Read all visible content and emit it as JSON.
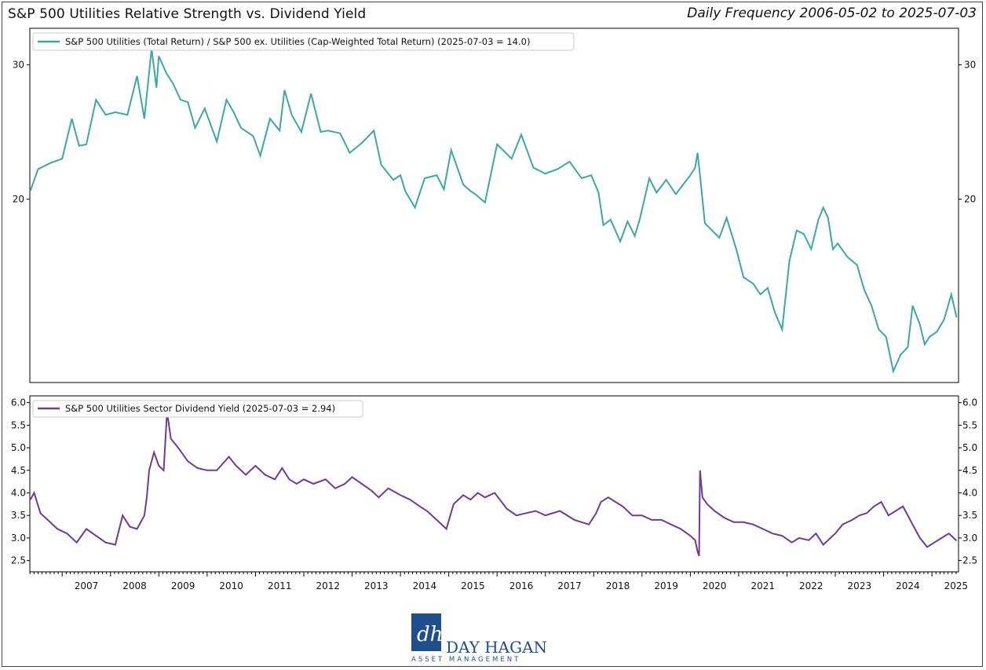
{
  "header": {
    "title": "S&P 500 Utilities Relative Strength vs. Dividend Yield",
    "subtitle": "Daily Frequency 2006-05-02 to 2025-07-03"
  },
  "colors": {
    "rs_line": "#3aa9a6",
    "yield_line": "#6f3a98",
    "logo": "#1f4e8c"
  },
  "logo": {
    "company": "DAY HAGAN",
    "tagline": "ASSET MANAGEMENT",
    "monogram": "dh"
  },
  "chart_data": [
    {
      "type": "line",
      "title": "",
      "yscale": "log",
      "ylim": [
        11.5,
        33.5
      ],
      "xlim": [
        2006.33,
        2025.55
      ],
      "yticks": [
        20,
        30
      ],
      "yticks_labels": [
        "20",
        "30"
      ],
      "legend": "top-left",
      "series": [
        {
          "name": "S&P 500 Utilities (Total Return) / S&P 500 ex. Utilities (Cap-Weighted Total Return) (2025-07-03 = 14.0)",
          "x": [
            2006.34,
            2006.5,
            2006.75,
            2007.0,
            2007.2,
            2007.35,
            2007.5,
            2007.7,
            2007.9,
            2008.1,
            2008.35,
            2008.55,
            2008.7,
            2008.85,
            2008.95,
            2009.0,
            2009.15,
            2009.3,
            2009.45,
            2009.6,
            2009.75,
            2009.95,
            2010.2,
            2010.4,
            2010.55,
            2010.7,
            2010.95,
            2011.1,
            2011.3,
            2011.5,
            2011.6,
            2011.75,
            2011.95,
            2012.15,
            2012.35,
            2012.5,
            2012.75,
            2012.95,
            2013.2,
            2013.45,
            2013.6,
            2013.85,
            2014.0,
            2014.1,
            2014.3,
            2014.5,
            2014.75,
            2014.9,
            2015.05,
            2015.3,
            2015.45,
            2015.55,
            2015.75,
            2016.0,
            2016.3,
            2016.5,
            2016.75,
            2017.0,
            2017.25,
            2017.5,
            2017.75,
            2017.95,
            2018.1,
            2018.2,
            2018.35,
            2018.55,
            2018.7,
            2018.85,
            2018.95,
            2019.15,
            2019.3,
            2019.5,
            2019.7,
            2019.85,
            2020.0,
            2020.1,
            2020.15,
            2020.2,
            2020.3,
            2020.45,
            2020.6,
            2020.75,
            2020.95,
            2021.1,
            2021.3,
            2021.45,
            2021.6,
            2021.75,
            2021.9,
            2022.05,
            2022.2,
            2022.35,
            2022.5,
            2022.65,
            2022.75,
            2022.85,
            2022.95,
            2023.05,
            2023.25,
            2023.45,
            2023.6,
            2023.75,
            2023.9,
            2024.05,
            2024.2,
            2024.35,
            2024.5,
            2024.6,
            2024.75,
            2024.85,
            2024.95,
            2025.1,
            2025.25,
            2025.4,
            2025.51
          ],
          "y": [
            20.5,
            21.9,
            22.3,
            22.6,
            25.5,
            23.5,
            23.6,
            27.0,
            25.8,
            26.0,
            25.8,
            29.0,
            25.5,
            31.5,
            28.0,
            30.8,
            29.3,
            28.3,
            27.0,
            26.8,
            24.8,
            26.3,
            23.8,
            27.0,
            26.0,
            24.8,
            24.2,
            22.8,
            25.5,
            24.6,
            27.8,
            25.8,
            24.5,
            27.5,
            24.5,
            24.6,
            24.4,
            23.0,
            23.7,
            24.6,
            22.2,
            21.2,
            21.5,
            20.5,
            19.5,
            21.3,
            21.5,
            20.6,
            23.2,
            20.9,
            20.5,
            20.3,
            19.8,
            23.6,
            22.6,
            24.3,
            22.0,
            21.6,
            21.9,
            22.4,
            21.3,
            21.5,
            20.4,
            18.5,
            18.8,
            17.6,
            18.7,
            17.9,
            18.8,
            21.3,
            20.4,
            21.2,
            20.3,
            20.9,
            21.5,
            22.0,
            23.0,
            21.5,
            18.6,
            18.2,
            17.8,
            18.9,
            17.2,
            15.8,
            15.5,
            15.0,
            15.3,
            14.2,
            13.5,
            16.6,
            18.2,
            18.0,
            17.2,
            18.8,
            19.5,
            18.9,
            17.2,
            17.5,
            16.8,
            16.4,
            15.2,
            14.5,
            13.5,
            13.2,
            11.9,
            12.5,
            12.8,
            14.5,
            13.7,
            12.9,
            13.2,
            13.4,
            13.9,
            15.0,
            14.0
          ]
        }
      ]
    },
    {
      "type": "line",
      "title": "",
      "ylim": [
        2.25,
        6.15
      ],
      "xlim": [
        2006.33,
        2025.55
      ],
      "yticks": [
        2.5,
        3.0,
        3.5,
        4.0,
        4.5,
        5.0,
        5.5,
        6.0
      ],
      "yticks_labels": [
        "2.5",
        "3.0",
        "3.5",
        "4.0",
        "4.5",
        "5.0",
        "5.5",
        "6.0"
      ],
      "xticks": [
        2007,
        2008,
        2009,
        2010,
        2011,
        2012,
        2013,
        2014,
        2015,
        2016,
        2017,
        2018,
        2019,
        2020,
        2021,
        2022,
        2023,
        2024,
        2025
      ],
      "xticks_labels": [
        "2007",
        "2008",
        "2009",
        "2010",
        "2011",
        "2012",
        "2013",
        "2014",
        "2015",
        "2016",
        "2017",
        "2018",
        "2019",
        "2020",
        "2021",
        "2022",
        "2023",
        "2024",
        "2025"
      ],
      "legend": "top-left",
      "series": [
        {
          "name": "S&P 500 Utilities Sector Dividend Yield (2025-07-03 = 2.94)",
          "x": [
            2006.34,
            2006.42,
            2006.55,
            2006.7,
            2006.9,
            2007.1,
            2007.3,
            2007.5,
            2007.7,
            2007.9,
            2008.1,
            2008.25,
            2008.4,
            2008.55,
            2008.7,
            2008.75,
            2008.8,
            2008.9,
            2009.0,
            2009.1,
            2009.17,
            2009.25,
            2009.4,
            2009.6,
            2009.8,
            2010.0,
            2010.2,
            2010.45,
            2010.6,
            2010.8,
            2011.0,
            2011.2,
            2011.4,
            2011.55,
            2011.7,
            2011.85,
            2012.0,
            2012.2,
            2012.45,
            2012.65,
            2012.85,
            2013.0,
            2013.2,
            2013.4,
            2013.55,
            2013.75,
            2014.0,
            2014.2,
            2014.4,
            2014.55,
            2014.75,
            2014.95,
            2015.1,
            2015.3,
            2015.45,
            2015.6,
            2015.75,
            2015.95,
            2016.2,
            2016.4,
            2016.6,
            2016.8,
            2017.0,
            2017.3,
            2017.6,
            2017.9,
            2018.05,
            2018.15,
            2018.3,
            2018.45,
            2018.6,
            2018.8,
            2019.0,
            2019.2,
            2019.4,
            2019.6,
            2019.8,
            2020.0,
            2020.1,
            2020.15,
            2020.18,
            2020.2,
            2020.25,
            2020.35,
            2020.5,
            2020.7,
            2020.9,
            2021.1,
            2021.3,
            2021.5,
            2021.7,
            2021.9,
            2022.1,
            2022.25,
            2022.45,
            2022.6,
            2022.75,
            2022.9,
            2023.0,
            2023.15,
            2023.35,
            2023.5,
            2023.65,
            2023.8,
            2023.95,
            2024.1,
            2024.25,
            2024.4,
            2024.6,
            2024.75,
            2024.9,
            2025.05,
            2025.2,
            2025.35,
            2025.51
          ],
          "y": [
            3.85,
            4.0,
            3.55,
            3.4,
            3.2,
            3.1,
            2.9,
            3.2,
            3.05,
            2.9,
            2.85,
            3.5,
            3.25,
            3.2,
            3.5,
            3.9,
            4.5,
            4.9,
            4.6,
            4.5,
            5.8,
            5.2,
            5.0,
            4.7,
            4.55,
            4.5,
            4.5,
            4.8,
            4.6,
            4.4,
            4.6,
            4.4,
            4.3,
            4.55,
            4.3,
            4.2,
            4.3,
            4.2,
            4.3,
            4.1,
            4.2,
            4.35,
            4.2,
            4.05,
            3.9,
            4.1,
            3.95,
            3.85,
            3.7,
            3.6,
            3.4,
            3.2,
            3.75,
            3.95,
            3.85,
            4.0,
            3.9,
            4.0,
            3.65,
            3.5,
            3.55,
            3.6,
            3.5,
            3.6,
            3.4,
            3.3,
            3.55,
            3.8,
            3.9,
            3.8,
            3.7,
            3.5,
            3.5,
            3.4,
            3.4,
            3.3,
            3.2,
            3.05,
            2.95,
            2.7,
            2.6,
            4.5,
            3.9,
            3.75,
            3.6,
            3.45,
            3.35,
            3.35,
            3.3,
            3.2,
            3.1,
            3.05,
            2.9,
            3.0,
            2.95,
            3.1,
            2.85,
            3.0,
            3.1,
            3.3,
            3.4,
            3.5,
            3.55,
            3.7,
            3.8,
            3.5,
            3.6,
            3.7,
            3.3,
            3.0,
            2.8,
            2.9,
            3.0,
            3.1,
            2.94
          ]
        }
      ]
    }
  ]
}
